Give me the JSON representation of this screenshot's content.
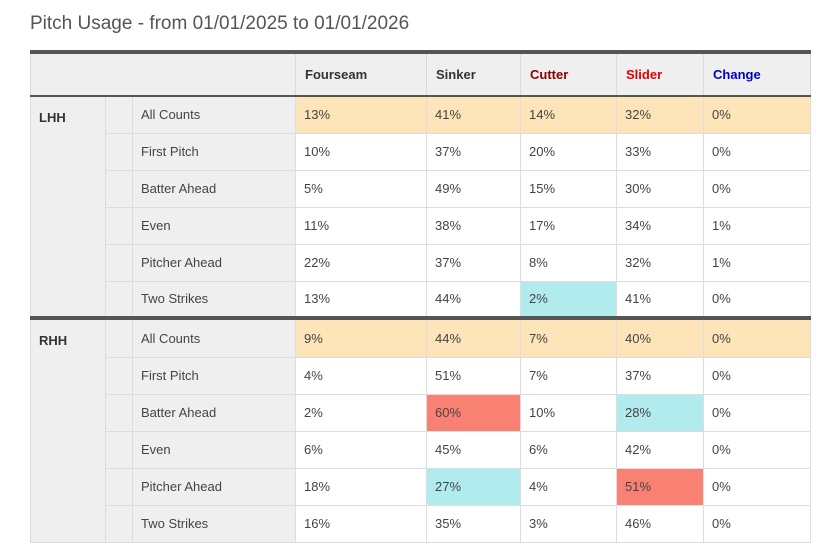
{
  "title": "Pitch Usage - from 01/01/2025 to 01/01/2026",
  "colors": {
    "highlight_row": "#fde4b9",
    "high": "#f98173",
    "low": "#b2ebee",
    "header_bg": "#efefef",
    "border_dark": "#555555"
  },
  "columns": [
    {
      "label": "Fourseam",
      "color": "#333333"
    },
    {
      "label": "Sinker",
      "color": "#333333"
    },
    {
      "label": "Cutter",
      "color": "#8b0000"
    },
    {
      "label": "Slider",
      "color": "#e00000"
    },
    {
      "label": "Change",
      "color": "#0000cc"
    }
  ],
  "groups": [
    {
      "hand": "LHH",
      "rows": [
        {
          "count": "All Counts",
          "values": [
            "13%",
            "41%",
            "14%",
            "32%",
            "0%"
          ],
          "highlight": [
            "row",
            "row",
            "row",
            "row",
            "row"
          ]
        },
        {
          "count": "First Pitch",
          "values": [
            "10%",
            "37%",
            "20%",
            "33%",
            "0%"
          ],
          "highlight": [
            "",
            "",
            "",
            "",
            ""
          ]
        },
        {
          "count": "Batter Ahead",
          "values": [
            "5%",
            "49%",
            "15%",
            "30%",
            "0%"
          ],
          "highlight": [
            "",
            "",
            "",
            "",
            ""
          ]
        },
        {
          "count": "Even",
          "values": [
            "11%",
            "38%",
            "17%",
            "34%",
            "1%"
          ],
          "highlight": [
            "",
            "",
            "",
            "",
            ""
          ]
        },
        {
          "count": "Pitcher Ahead",
          "values": [
            "22%",
            "37%",
            "8%",
            "32%",
            "1%"
          ],
          "highlight": [
            "",
            "",
            "",
            "",
            ""
          ]
        },
        {
          "count": "Two Strikes",
          "values": [
            "13%",
            "44%",
            "2%",
            "41%",
            "0%"
          ],
          "highlight": [
            "",
            "",
            "low",
            "",
            ""
          ]
        }
      ]
    },
    {
      "hand": "RHH",
      "rows": [
        {
          "count": "All Counts",
          "values": [
            "9%",
            "44%",
            "7%",
            "40%",
            "0%"
          ],
          "highlight": [
            "row",
            "row",
            "row",
            "row",
            "row"
          ]
        },
        {
          "count": "First Pitch",
          "values": [
            "4%",
            "51%",
            "7%",
            "37%",
            "0%"
          ],
          "highlight": [
            "",
            "",
            "",
            "",
            ""
          ]
        },
        {
          "count": "Batter Ahead",
          "values": [
            "2%",
            "60%",
            "10%",
            "28%",
            "0%"
          ],
          "highlight": [
            "",
            "high",
            "",
            "low",
            ""
          ]
        },
        {
          "count": "Even",
          "values": [
            "6%",
            "45%",
            "6%",
            "42%",
            "0%"
          ],
          "highlight": [
            "",
            "",
            "",
            "",
            ""
          ]
        },
        {
          "count": "Pitcher Ahead",
          "values": [
            "18%",
            "27%",
            "4%",
            "51%",
            "0%"
          ],
          "highlight": [
            "",
            "low",
            "",
            "high",
            ""
          ]
        },
        {
          "count": "Two Strikes",
          "values": [
            "16%",
            "35%",
            "3%",
            "46%",
            "0%"
          ],
          "highlight": [
            "",
            "",
            "",
            "",
            ""
          ]
        }
      ]
    }
  ]
}
